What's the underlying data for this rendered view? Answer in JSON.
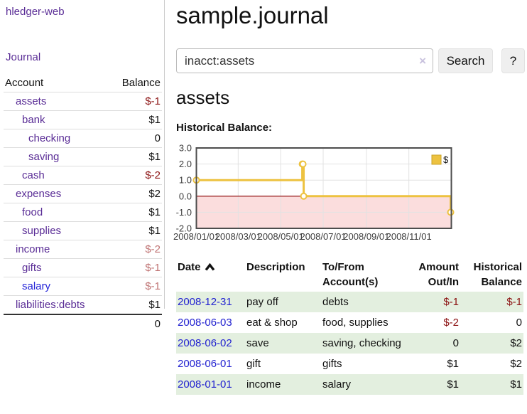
{
  "colors": {
    "link_purple": "#5a2d96",
    "link_blue": "#2424d8",
    "negative_strong": "#8b1111",
    "negative_muted": "#bf7272",
    "row_shade_green": "#e3efdf",
    "chart_gold": "#edc240"
  },
  "sidebar": {
    "brand": "hledger-web",
    "nav_journal": "Journal",
    "col_account": "Account",
    "col_balance": "Balance",
    "accounts": [
      {
        "name": "assets",
        "balance": "$-1",
        "level": 1,
        "bold": true,
        "balance_style": "negative-strong",
        "link_color": "purple"
      },
      {
        "name": "bank",
        "balance": "$1",
        "level": 2,
        "bold": true,
        "balance_style": "normal",
        "link_color": "purple"
      },
      {
        "name": "checking",
        "balance": "0",
        "level": 3,
        "bold": true,
        "balance_style": "normal",
        "link_color": "purple"
      },
      {
        "name": "saving",
        "balance": "$1",
        "level": 3,
        "bold": true,
        "balance_style": "normal",
        "link_color": "purple"
      },
      {
        "name": "cash",
        "balance": "$-2",
        "level": 2,
        "bold": true,
        "balance_style": "negative-strong",
        "link_color": "purple"
      },
      {
        "name": "expenses",
        "balance": "$2",
        "level": 1,
        "bold": false,
        "balance_style": "normal",
        "link_color": "purple"
      },
      {
        "name": "food",
        "balance": "$1",
        "level": 2,
        "bold": false,
        "balance_style": "normal",
        "link_color": "purple"
      },
      {
        "name": "supplies",
        "balance": "$1",
        "level": 2,
        "bold": false,
        "balance_style": "normal",
        "link_color": "purple"
      },
      {
        "name": "income",
        "balance": "$-2",
        "level": 1,
        "bold": false,
        "balance_style": "negative-muted",
        "link_color": "purple"
      },
      {
        "name": "gifts",
        "balance": "$-1",
        "level": 2,
        "bold": false,
        "balance_style": "negative-muted",
        "link_color": "purple"
      },
      {
        "name": "salary",
        "balance": "$-1",
        "level": 2,
        "bold": false,
        "balance_style": "negative-muted",
        "link_color": "blue"
      },
      {
        "name": "liabilities:debts",
        "balance": "$1",
        "level": 1,
        "bold": false,
        "balance_style": "normal",
        "link_color": "purple"
      }
    ],
    "total": "0"
  },
  "main": {
    "title": "sample.journal",
    "search": {
      "value": "inacct:assets",
      "clear_icon": "×",
      "search_button": "Search",
      "help_button": "?"
    },
    "account_heading": "assets",
    "section_label": "Historical Balance:"
  },
  "chart_data": {
    "type": "line",
    "step": true,
    "title": "Historical Balance",
    "legend": [
      {
        "label": "$",
        "color": "#edc240"
      }
    ],
    "legend_position": "top-right",
    "grid": true,
    "x_start": "2008-01-01",
    "x_span_days": 366,
    "ylim": [
      -2.0,
      3.0
    ],
    "yticks": [
      "3.0",
      "2.0",
      "1.0",
      "0.0",
      "-1.0",
      "-2.0"
    ],
    "xticks": [
      "2008/01/01",
      "2008/03/01",
      "2008/05/01",
      "2008/07/01",
      "2008/09/01",
      "2008/11/01"
    ],
    "series": [
      {
        "name": "$",
        "points": [
          [
            "2008-01-01",
            1
          ],
          [
            "2008-06-01",
            2
          ],
          [
            "2008-06-02",
            2
          ],
          [
            "2008-06-03",
            0
          ],
          [
            "2008-12-31",
            -1
          ]
        ]
      }
    ],
    "line_color": "#edc240",
    "marker_fill": "#ffffff",
    "negative_region_color": "#fbdddd",
    "zero_line_color": "#8b0000",
    "grid_line_color": "#e2e2e2",
    "plot_border_color": "#4d4d4d"
  },
  "register": {
    "headers": [
      "Date",
      "Description",
      "To/From Account(s)",
      "Amount Out/In",
      "Historical Balance"
    ],
    "sort": {
      "column": "Date",
      "direction": "ascending"
    },
    "rows": [
      {
        "date": "2008-12-31",
        "description": "pay off",
        "accounts": "debts",
        "amount": "$-1",
        "balance": "$-1",
        "amount_negative": true,
        "balance_negative": true,
        "shaded": true
      },
      {
        "date": "2008-06-03",
        "description": "eat & shop",
        "accounts": "food, supplies",
        "amount": "$-2",
        "balance": "0",
        "amount_negative": true,
        "balance_negative": false,
        "shaded": false
      },
      {
        "date": "2008-06-02",
        "description": "save",
        "accounts": "saving, checking",
        "amount": "0",
        "balance": "$2",
        "amount_negative": false,
        "balance_negative": false,
        "shaded": true
      },
      {
        "date": "2008-06-01",
        "description": "gift",
        "accounts": "gifts",
        "amount": "$1",
        "balance": "$2",
        "amount_negative": false,
        "balance_negative": false,
        "shaded": false
      },
      {
        "date": "2008-01-01",
        "description": "income",
        "accounts": "salary",
        "amount": "$1",
        "balance": "$1",
        "amount_negative": false,
        "balance_negative": false,
        "shaded": true
      }
    ]
  }
}
